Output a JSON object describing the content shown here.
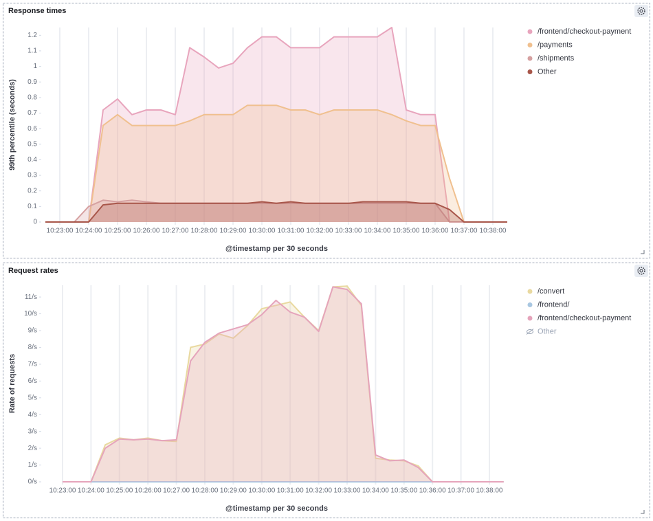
{
  "chart_data": [
    {
      "type": "area",
      "title": "Response times",
      "y_label": "99th percentile (seconds)",
      "x_label": "@timestamp per 30 seconds",
      "x": [
        "10:22:30",
        "10:23:00",
        "10:23:30",
        "10:24:00",
        "10:24:30",
        "10:25:00",
        "10:25:30",
        "10:26:00",
        "10:26:30",
        "10:27:00",
        "10:27:30",
        "10:28:00",
        "10:28:30",
        "10:29:00",
        "10:29:30",
        "10:30:00",
        "10:30:30",
        "10:31:00",
        "10:31:30",
        "10:32:00",
        "10:32:30",
        "10:33:00",
        "10:33:30",
        "10:34:00",
        "10:34:30",
        "10:35:00",
        "10:35:30",
        "10:36:00",
        "10:36:30",
        "10:37:00",
        "10:37:30",
        "10:38:00",
        "10:38:30"
      ],
      "xticks": [
        "10:23:00",
        "10:24:00",
        "10:25:00",
        "10:26:00",
        "10:27:00",
        "10:28:00",
        "10:29:00",
        "10:30:00",
        "10:31:00",
        "10:32:00",
        "10:33:00",
        "10:34:00",
        "10:35:00",
        "10:36:00",
        "10:37:00",
        "10:38:00"
      ],
      "ylim": [
        0,
        1.25
      ],
      "yticks": [
        0,
        0.1,
        0.2,
        0.3,
        0.4,
        0.5,
        0.6,
        0.7,
        0.8,
        0.9,
        1,
        1.1,
        1.2
      ],
      "grid": "x",
      "series": [
        {
          "name": "/frontend/checkout-payment",
          "color": "#e8a5bd",
          "values": [
            0,
            0,
            0,
            0,
            0.72,
            0.79,
            0.69,
            0.72,
            0.72,
            0.69,
            1.12,
            1.06,
            0.99,
            1.02,
            1.12,
            1.19,
            1.19,
            1.12,
            1.12,
            1.12,
            1.19,
            1.19,
            1.19,
            1.19,
            1.25,
            0.72,
            0.69,
            0.69,
            0,
            0,
            0,
            0,
            0
          ]
        },
        {
          "name": "/payments",
          "color": "#f0c08f",
          "values": [
            0,
            0,
            0,
            0,
            0.62,
            0.69,
            0.62,
            0.62,
            0.62,
            0.62,
            0.65,
            0.69,
            0.69,
            0.69,
            0.75,
            0.75,
            0.75,
            0.72,
            0.72,
            0.69,
            0.72,
            0.72,
            0.72,
            0.72,
            0.69,
            0.65,
            0.62,
            0.62,
            0.28,
            0,
            0,
            0,
            0
          ]
        },
        {
          "name": "/shipments",
          "color": "#d6a1a1",
          "values": [
            0,
            0,
            0,
            0.1,
            0.14,
            0.13,
            0.14,
            0.13,
            0.12,
            0.12,
            0.12,
            0.12,
            0.12,
            0.12,
            0.12,
            0.12,
            0.12,
            0.12,
            0.12,
            0.12,
            0.12,
            0.12,
            0.12,
            0.12,
            0.12,
            0.12,
            0.12,
            0.12,
            0,
            0,
            0,
            0,
            0
          ]
        },
        {
          "name": "Other",
          "color": "#a8564a",
          "values": [
            0,
            0,
            0,
            0,
            0.11,
            0.12,
            0.12,
            0.12,
            0.12,
            0.12,
            0.12,
            0.12,
            0.12,
            0.12,
            0.12,
            0.13,
            0.12,
            0.13,
            0.12,
            0.12,
            0.12,
            0.12,
            0.13,
            0.13,
            0.13,
            0.13,
            0.12,
            0.12,
            0.08,
            0,
            0,
            0,
            0
          ]
        }
      ]
    },
    {
      "type": "area",
      "title": "Request rates",
      "y_label": "Rate of requests",
      "x_label": "@timestamp per 30 seconds",
      "x": [
        "10:23:00",
        "10:23:30",
        "10:24:00",
        "10:24:30",
        "10:25:00",
        "10:25:30",
        "10:26:00",
        "10:26:30",
        "10:27:00",
        "10:27:30",
        "10:28:00",
        "10:28:30",
        "10:29:00",
        "10:29:30",
        "10:30:00",
        "10:30:30",
        "10:31:00",
        "10:31:30",
        "10:32:00",
        "10:32:30",
        "10:33:00",
        "10:33:30",
        "10:34:00",
        "10:34:30",
        "10:35:00",
        "10:35:30",
        "10:36:00",
        "10:36:30",
        "10:37:00",
        "10:37:30",
        "10:38:00",
        "10:38:30"
      ],
      "xticks": [
        "10:23:00",
        "10:24:00",
        "10:25:00",
        "10:26:00",
        "10:27:00",
        "10:28:00",
        "10:29:00",
        "10:30:00",
        "10:31:00",
        "10:32:00",
        "10:33:00",
        "10:34:00",
        "10:35:00",
        "10:36:00",
        "10:37:00",
        "10:38:00"
      ],
      "ylim": [
        0,
        11.7
      ],
      "yticks": [
        {
          "value": 0,
          "label": "0/s"
        },
        {
          "value": 1,
          "label": "1/s"
        },
        {
          "value": 2,
          "label": "2/s"
        },
        {
          "value": 3,
          "label": "3/s"
        },
        {
          "value": 4,
          "label": "4/s"
        },
        {
          "value": 5,
          "label": "5/s"
        },
        {
          "value": 6,
          "label": "6/s"
        },
        {
          "value": 7,
          "label": "7/s"
        },
        {
          "value": 8,
          "label": "8/s"
        },
        {
          "value": 9,
          "label": "9/s"
        },
        {
          "value": 10,
          "label": "10/s"
        },
        {
          "value": 11,
          "label": "11/s"
        }
      ],
      "grid": "x",
      "series": [
        {
          "name": "/convert",
          "color": "#e9d9a0",
          "values": [
            0,
            0,
            0,
            2.2,
            2.6,
            2.5,
            2.6,
            2.45,
            2.4,
            8.0,
            8.2,
            8.8,
            8.55,
            9.3,
            10.3,
            10.5,
            10.7,
            9.8,
            9.0,
            11.6,
            11.65,
            10.5,
            1.4,
            1.3,
            1.25,
            0.95,
            0,
            0,
            0,
            0,
            0,
            0
          ]
        },
        {
          "name": "/frontend/",
          "color": "#a9c7e1",
          "values": [
            0,
            0,
            0,
            0,
            0,
            0,
            0,
            0,
            0,
            0,
            0,
            0,
            0,
            0,
            0,
            0,
            0,
            0,
            0,
            0,
            0,
            0,
            0,
            0,
            0,
            0,
            0,
            0,
            0,
            0,
            0,
            0
          ]
        },
        {
          "name": "/frontend/checkout-payment",
          "color": "#e5a4bb",
          "values": [
            0,
            0,
            0,
            2.0,
            2.55,
            2.5,
            2.55,
            2.45,
            2.5,
            7.2,
            8.3,
            8.85,
            9.1,
            9.35,
            9.95,
            10.8,
            10.1,
            9.8,
            8.95,
            11.6,
            11.45,
            10.6,
            1.6,
            1.25,
            1.3,
            0.85,
            0,
            0,
            0,
            0,
            0,
            0
          ]
        }
      ],
      "hidden_legend": [
        "Other"
      ]
    }
  ]
}
